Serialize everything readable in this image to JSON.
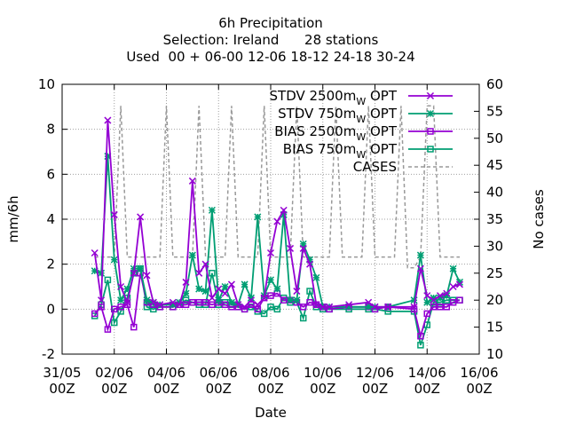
{
  "chart_data": {
    "type": "line",
    "title": [
      "6h Precipitation",
      "Selection: Ireland      28 stations",
      "Used  00 + 06-00 12-06 18-12 24-18 30-24"
    ],
    "xlabel": "Date",
    "ylabel": "mm/6h",
    "y2label": "No cases",
    "x_range_days": [
      0,
      16
    ],
    "ylim": [
      -2,
      10
    ],
    "y2lim": [
      10,
      60
    ],
    "grid": true,
    "legend_position": "top-right",
    "x_ticks": [
      {
        "d": 0,
        "l1": "31/05",
        "l2": "00Z"
      },
      {
        "d": 2,
        "l1": "02/06",
        "l2": "00Z"
      },
      {
        "d": 4,
        "l1": "04/06",
        "l2": "00Z"
      },
      {
        "d": 6,
        "l1": "06/06",
        "l2": "00Z"
      },
      {
        "d": 8,
        "l1": "08/06",
        "l2": "00Z"
      },
      {
        "d": 10,
        "l1": "10/06",
        "l2": "00Z"
      },
      {
        "d": 12,
        "l1": "12/06",
        "l2": "00Z"
      },
      {
        "d": 14,
        "l1": "14/06",
        "l2": "00Z"
      },
      {
        "d": 16,
        "l1": "16/06",
        "l2": "00Z"
      }
    ],
    "y_ticks": [
      -2,
      0,
      2,
      4,
      6,
      8,
      10
    ],
    "y2_ticks": [
      10,
      15,
      20,
      25,
      30,
      35,
      40,
      45,
      50,
      55,
      60
    ],
    "series": [
      {
        "name": "STDV 2500m",
        "legend_subscript": "W",
        "legend_suffix": "OPT",
        "color": "#9400d3",
        "marker": "cross",
        "axis": "y",
        "x": [
          1.25,
          1.5,
          1.75,
          2.0,
          2.25,
          2.5,
          2.75,
          3.0,
          3.25,
          3.5,
          3.75,
          4.25,
          4.5,
          4.75,
          5.0,
          5.25,
          5.5,
          5.75,
          6.0,
          6.25,
          6.5,
          6.75,
          7.0,
          7.25,
          7.5,
          7.75,
          8.0,
          8.25,
          8.5,
          8.75,
          9.0,
          9.25,
          9.5,
          9.75,
          10.0,
          10.25,
          11.0,
          11.75,
          12.0,
          12.5,
          13.5,
          13.75,
          14.0,
          14.25,
          14.5,
          14.75,
          15.0,
          15.25
        ],
        "y": [
          2.5,
          0.4,
          8.4,
          4.2,
          1.0,
          0.3,
          1.6,
          4.1,
          1.5,
          0.3,
          0.2,
          0.3,
          0.2,
          1.2,
          5.7,
          1.6,
          2.0,
          0.5,
          0.9,
          0.7,
          1.1,
          0.2,
          0.1,
          0.4,
          0.2,
          0.5,
          2.5,
          3.9,
          4.4,
          2.7,
          0.8,
          2.7,
          2.0,
          0.2,
          0.1,
          0.1,
          0.2,
          0.3,
          0.1,
          0.1,
          0.1,
          1.8,
          0.6,
          0.4,
          0.6,
          0.7,
          1.0,
          1.1
        ]
      },
      {
        "name": "STDV 750m",
        "legend_subscript": "W",
        "legend_suffix": "OPT",
        "color": "#009e73",
        "marker": "star",
        "axis": "y",
        "x": [
          1.25,
          1.5,
          1.75,
          2.0,
          2.25,
          2.5,
          2.75,
          3.0,
          3.25,
          3.5,
          3.75,
          4.25,
          4.5,
          4.75,
          5.0,
          5.25,
          5.5,
          5.75,
          6.0,
          6.25,
          6.5,
          6.75,
          7.0,
          7.25,
          7.5,
          7.75,
          8.0,
          8.25,
          8.5,
          8.75,
          9.0,
          9.25,
          9.5,
          9.75,
          10.0,
          10.25,
          11.0,
          11.75,
          12.0,
          12.5,
          13.5,
          13.75,
          14.0,
          14.25,
          14.5,
          14.75,
          15.0,
          15.25
        ],
        "y": [
          1.7,
          1.6,
          6.8,
          2.2,
          0.4,
          0.9,
          1.8,
          1.8,
          0.4,
          0.3,
          0.2,
          0.2,
          0.3,
          0.7,
          2.4,
          0.9,
          0.8,
          4.4,
          0.4,
          1.0,
          0.3,
          0.2,
          1.1,
          0.5,
          4.1,
          0.6,
          1.3,
          0.9,
          4.2,
          0.4,
          0.4,
          2.9,
          2.2,
          1.4,
          0.1,
          0.1,
          0.1,
          0.1,
          0.1,
          0.1,
          0.4,
          2.4,
          0.3,
          0.5,
          0.5,
          0.6,
          1.8,
          1.2
        ]
      },
      {
        "name": "BIAS 2500m",
        "legend_subscript": "W",
        "legend_suffix": "OPT",
        "color": "#9400d3",
        "marker": "square",
        "axis": "y",
        "x": [
          1.25,
          1.5,
          1.75,
          2.0,
          2.25,
          2.5,
          2.75,
          3.0,
          3.25,
          3.5,
          3.75,
          4.25,
          4.5,
          4.75,
          5.0,
          5.25,
          5.5,
          5.75,
          6.0,
          6.25,
          6.5,
          6.75,
          7.0,
          7.25,
          7.5,
          7.75,
          8.0,
          8.25,
          8.5,
          8.75,
          9.0,
          9.25,
          9.5,
          9.75,
          10.0,
          10.25,
          11.0,
          11.75,
          12.0,
          12.5,
          13.5,
          13.75,
          14.0,
          14.25,
          14.5,
          14.75,
          15.0,
          15.25
        ],
        "y": [
          -0.2,
          0.1,
          -0.9,
          0.0,
          0.1,
          0.2,
          -0.8,
          1.6,
          0.3,
          0.2,
          0.1,
          0.1,
          0.2,
          0.2,
          0.3,
          0.3,
          0.3,
          0.2,
          0.3,
          0.2,
          0.1,
          0.1,
          0.0,
          0.2,
          0.0,
          0.5,
          0.6,
          0.7,
          0.4,
          0.4,
          0.3,
          0.1,
          0.3,
          0.2,
          0.1,
          0.0,
          0.1,
          0.1,
          0.0,
          0.1,
          0.0,
          -1.2,
          -0.2,
          0.1,
          0.1,
          0.1,
          0.3,
          0.4
        ]
      },
      {
        "name": "BIAS 750m",
        "legend_subscript": "W",
        "legend_suffix": "OPT",
        "color": "#009e73",
        "marker": "square",
        "axis": "y",
        "x": [
          1.25,
          1.5,
          1.75,
          2.0,
          2.25,
          2.5,
          2.75,
          3.0,
          3.25,
          3.5,
          3.75,
          4.25,
          4.5,
          4.75,
          5.0,
          5.25,
          5.5,
          5.75,
          6.0,
          6.25,
          6.5,
          6.75,
          7.0,
          7.25,
          7.5,
          7.75,
          8.0,
          8.25,
          8.5,
          8.75,
          9.0,
          9.25,
          9.5,
          9.75,
          10.0,
          10.25,
          11.0,
          11.75,
          12.0,
          12.5,
          13.5,
          13.75,
          14.0,
          14.25,
          14.5,
          14.75,
          15.0,
          15.25
        ],
        "y": [
          -0.3,
          0.2,
          1.3,
          -0.6,
          -0.1,
          0.5,
          1.6,
          1.8,
          0.1,
          0.0,
          0.1,
          0.1,
          0.2,
          0.4,
          0.3,
          0.2,
          0.2,
          1.6,
          0.2,
          0.3,
          0.2,
          0.1,
          0.0,
          0.1,
          -0.1,
          -0.2,
          0.1,
          0.0,
          0.5,
          0.3,
          0.3,
          -0.4,
          0.8,
          0.1,
          0.0,
          0.0,
          0.0,
          0.0,
          0.0,
          -0.1,
          -0.1,
          -1.6,
          -0.7,
          0.3,
          0.3,
          0.4,
          0.4,
          0.4
        ]
      },
      {
        "name": "CASES",
        "color": "#999999",
        "dashed": true,
        "axis": "y2",
        "x": [
          1.25,
          1.5,
          1.75,
          2.0,
          2.25,
          2.5,
          2.75,
          3.0,
          3.25,
          3.5,
          3.75,
          4.0,
          4.25,
          4.5,
          4.75,
          5.0,
          5.25,
          5.5,
          5.75,
          6.0,
          6.25,
          6.5,
          6.75,
          7.0,
          7.25,
          7.5,
          7.75,
          8.0,
          8.25,
          8.5,
          8.75,
          9.0,
          9.25,
          9.5,
          9.75,
          10.0,
          10.25,
          10.5,
          10.75,
          11.0,
          11.25,
          11.5,
          11.75,
          12.0,
          12.25,
          12.5,
          12.75,
          13.0,
          13.25,
          13.5,
          13.75,
          14.0,
          14.25,
          14.5,
          14.75,
          15.0,
          15.25
        ],
        "y": [
          28,
          28,
          28,
          28,
          56,
          28,
          28,
          28,
          28,
          28,
          28,
          56,
          28,
          28,
          28,
          28,
          56,
          28,
          28,
          28,
          28,
          56,
          28,
          28,
          28,
          28,
          56,
          28,
          28,
          28,
          28,
          56,
          28,
          28,
          28,
          28,
          28,
          56,
          28,
          28,
          28,
          28,
          56,
          28,
          28,
          28,
          28,
          56,
          26,
          26,
          28,
          56,
          56,
          28,
          28,
          28,
          28
        ]
      }
    ]
  }
}
